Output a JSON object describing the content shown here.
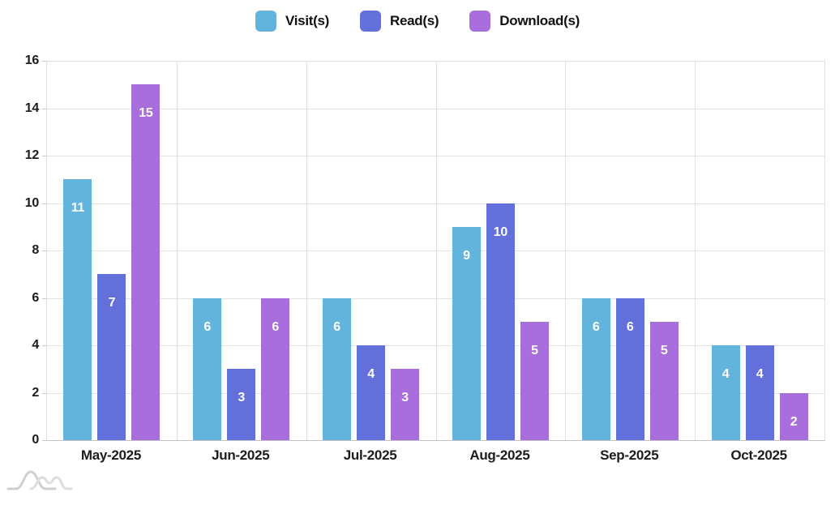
{
  "legend": {
    "items": [
      {
        "label": "Visit(s)",
        "color": "#63B4DC"
      },
      {
        "label": "Read(s)",
        "color": "#6370DB"
      },
      {
        "label": "Download(s)",
        "color": "#A76EDC"
      }
    ]
  },
  "chart_data": {
    "type": "bar",
    "categories": [
      "May-2025",
      "Jun-2025",
      "Jul-2025",
      "Aug-2025",
      "Sep-2025",
      "Oct-2025"
    ],
    "series": [
      {
        "name": "Visit(s)",
        "color": "#63B4DC",
        "values": [
          11,
          6,
          6,
          9,
          6,
          4
        ]
      },
      {
        "name": "Read(s)",
        "color": "#6370DB",
        "values": [
          7,
          3,
          4,
          10,
          6,
          4
        ]
      },
      {
        "name": "Download(s)",
        "color": "#A76EDC",
        "values": [
          15,
          6,
          3,
          5,
          5,
          2
        ]
      }
    ],
    "title": "",
    "xlabel": "",
    "ylabel": "",
    "ylim": [
      0,
      16
    ],
    "yticks": [
      0,
      2,
      4,
      6,
      8,
      10,
      12,
      14,
      16
    ],
    "grid": true,
    "legend_position": "top",
    "value_labels": true
  },
  "icons": {
    "logo_icon": "wave-curves-logo"
  },
  "colors": {
    "gridline": "#e2e2e2",
    "axis_line": "#c2c2c2",
    "axis_text": "#1c1c1c",
    "value_label_text": "#ffffff"
  }
}
